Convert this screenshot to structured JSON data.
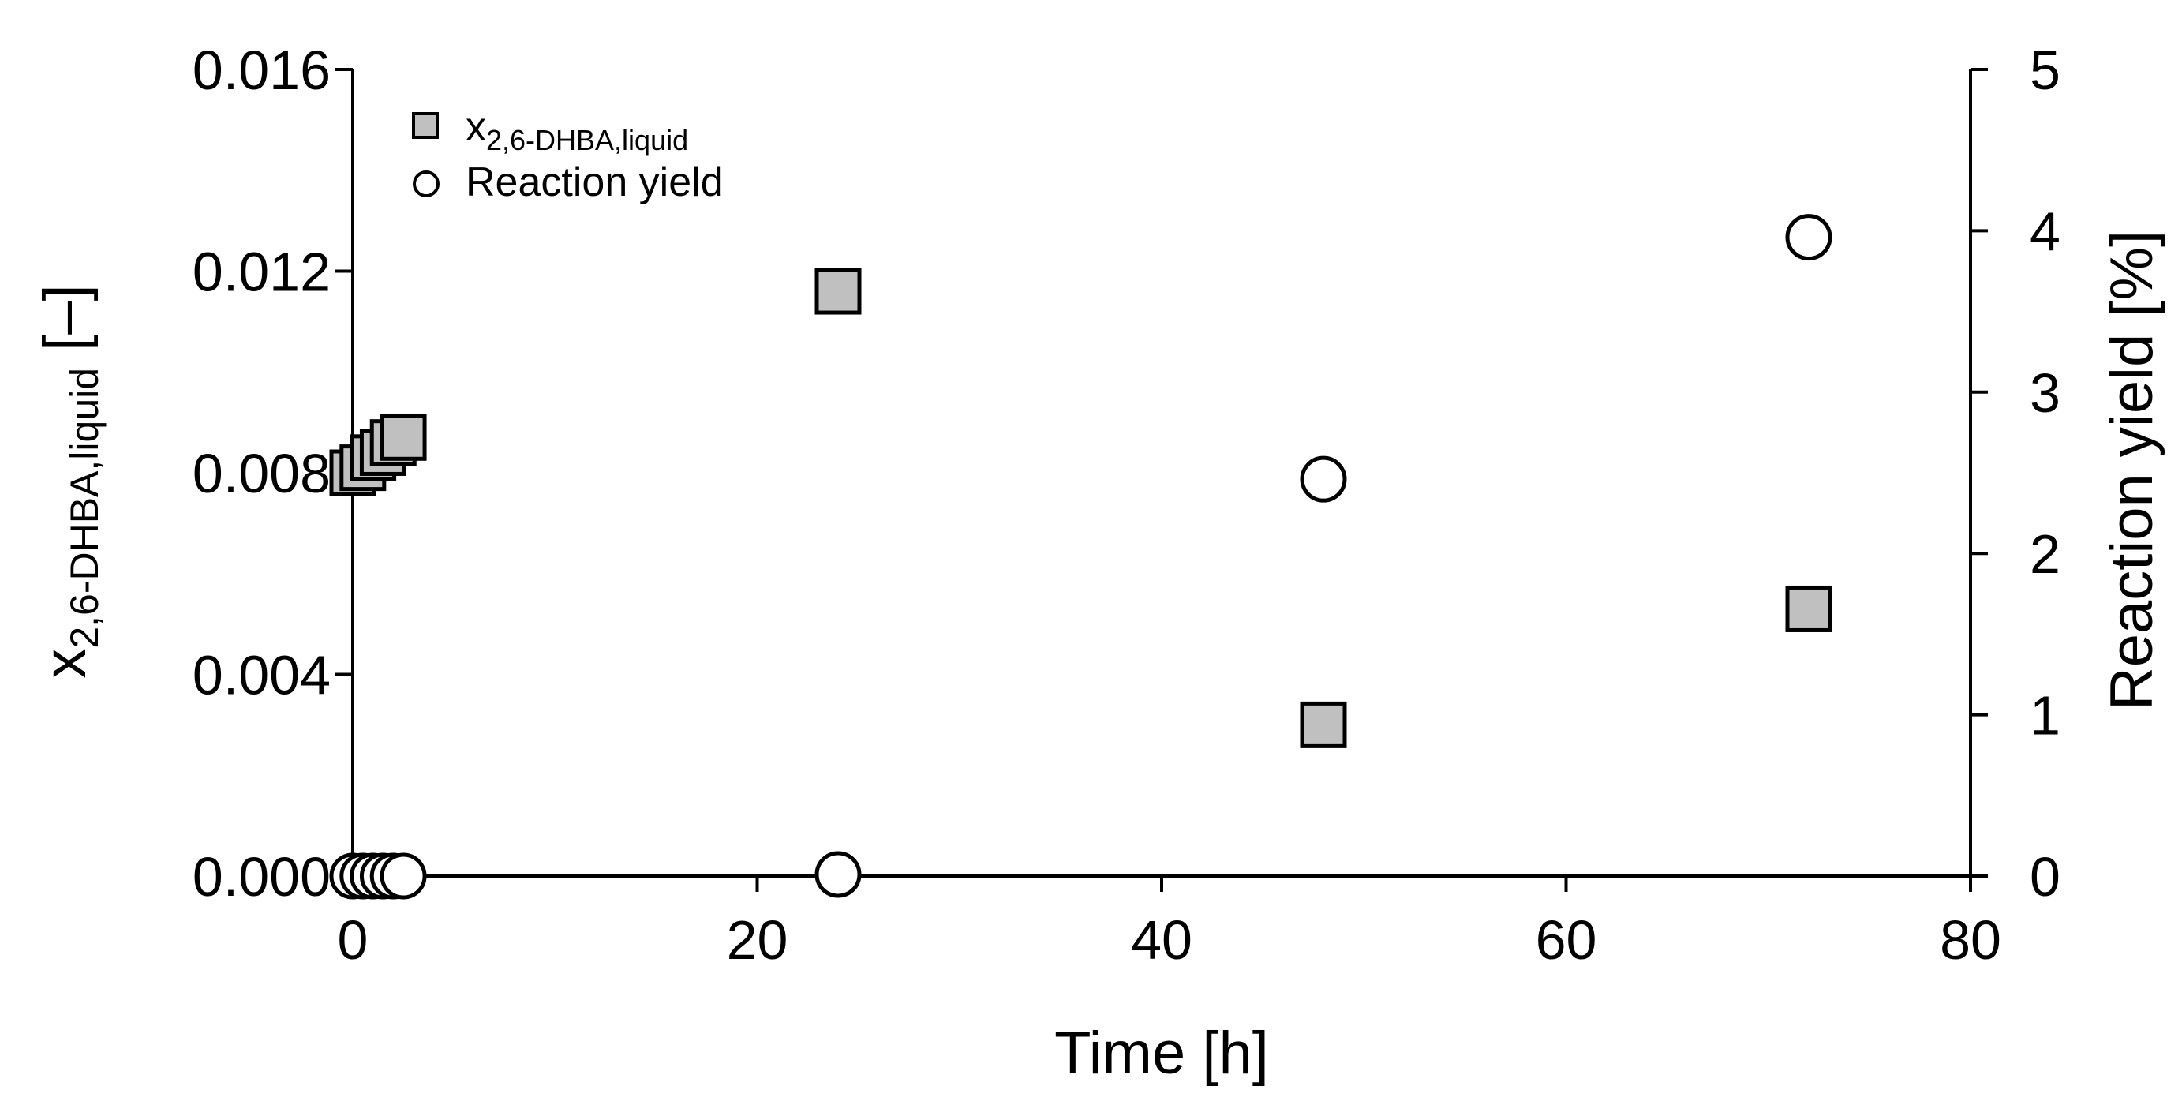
{
  "chart_data": {
    "type": "scatter",
    "x_axis": {
      "label": "Time [h]",
      "min": 0,
      "max": 80,
      "ticks": [
        "0",
        "20",
        "40",
        "60",
        "80"
      ]
    },
    "y_left_axis": {
      "label_main": "x",
      "label_sub": "2,6-DHBA,liquid",
      "label_suffix": " [–]",
      "min": 0,
      "max": 0.016,
      "ticks": [
        "0.000",
        "0.004",
        "0.008",
        "0.012",
        "0.016"
      ]
    },
    "y_right_axis": {
      "label": "Reaction yield [%]",
      "min": 0,
      "max": 5,
      "ticks": [
        "0",
        "1",
        "2",
        "3",
        "4",
        "5"
      ]
    },
    "legend": {
      "position": "top-left",
      "entries": [
        {
          "marker": "square",
          "label_main": "x",
          "label_sub": "2,6-DHBA,liquid"
        },
        {
          "marker": "circle",
          "label": "Reaction yield"
        }
      ]
    },
    "series": [
      {
        "name": "x2,6-DHBA,liquid",
        "axis": "left",
        "marker": "square",
        "color": "#c0c0c0",
        "x": [
          0,
          0.5,
          1,
          1.5,
          2,
          2.5,
          24,
          48,
          72
        ],
        "y": [
          0.008,
          0.0081,
          0.0083,
          0.0084,
          0.0086,
          0.0087,
          0.0116,
          0.003,
          0.0053
        ]
      },
      {
        "name": "Reaction yield",
        "axis": "right",
        "marker": "circle",
        "color": "#ffffff",
        "x": [
          0,
          0.5,
          1,
          1.5,
          2,
          2.5,
          24,
          48,
          72
        ],
        "y": [
          0,
          0,
          0,
          0,
          0,
          0,
          0.01,
          2.46,
          3.96
        ]
      }
    ]
  }
}
